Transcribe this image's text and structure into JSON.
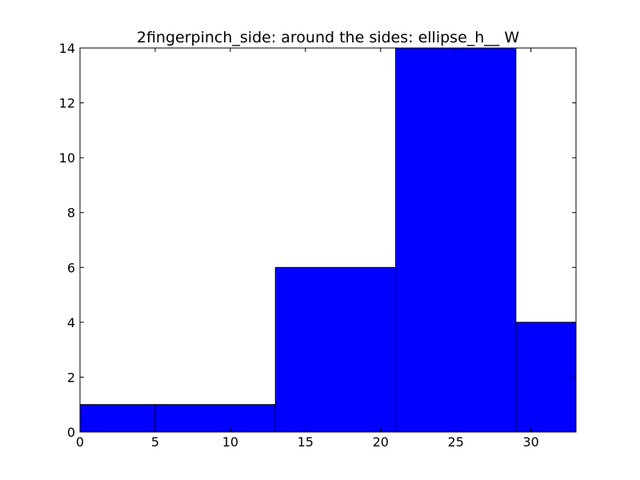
{
  "chart_data": {
    "type": "bar",
    "title": "2fingerpinch_side: around the sides: ellipse_h__ W",
    "xlabel": "",
    "ylabel": "",
    "xlim": [
      0,
      33
    ],
    "ylim": [
      0,
      14
    ],
    "x_ticks": [
      0,
      5,
      10,
      15,
      20,
      25,
      30
    ],
    "y_ticks": [
      0,
      2,
      4,
      6,
      8,
      10,
      12,
      14
    ],
    "bins": [
      {
        "x0": 0,
        "x1": 5,
        "value": 1
      },
      {
        "x0": 5,
        "x1": 13,
        "value": 1
      },
      {
        "x0": 13,
        "x1": 21,
        "value": 6
      },
      {
        "x0": 21,
        "x1": 29,
        "value": 14
      },
      {
        "x0": 29,
        "x1": 33,
        "value": 4
      }
    ],
    "bar_color": "#0000ff",
    "edge_color": "#000000",
    "grid": false,
    "legend": "none"
  }
}
